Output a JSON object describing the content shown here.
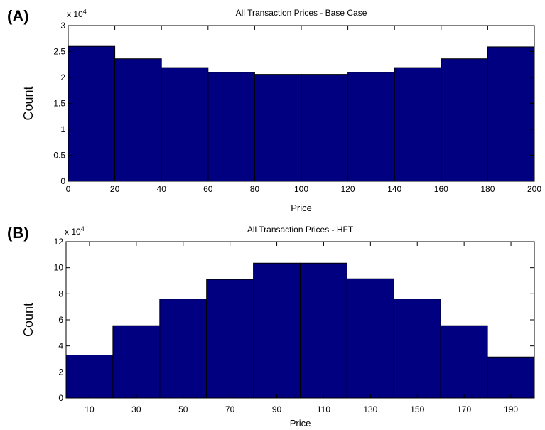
{
  "chart_data": [
    {
      "type": "bar",
      "panel_label": "(A)",
      "title": "All Transaction Prices - Base Case",
      "xlabel": "Price",
      "ylabel": "Count",
      "y_multiplier": {
        "base": "x 10",
        "exponent": "4"
      },
      "xlim": [
        0,
        200
      ],
      "ylim": [
        0,
        3
      ],
      "x_ticks": [
        0,
        20,
        40,
        60,
        80,
        100,
        120,
        140,
        160,
        180,
        200
      ],
      "y_ticks": [
        0,
        0.5,
        1,
        1.5,
        2,
        2.5,
        3
      ],
      "bin_edges": [
        0,
        20,
        40,
        60,
        80,
        100,
        120,
        140,
        160,
        180,
        200
      ],
      "values": [
        2.6,
        2.36,
        2.19,
        2.1,
        2.06,
        2.06,
        2.1,
        2.19,
        2.36,
        2.59
      ],
      "bar_color": "#000080",
      "grid": false
    },
    {
      "type": "bar",
      "panel_label": "(B)",
      "title": "All Transaction Prices - HFT",
      "xlabel": "Price",
      "ylabel": "Count",
      "y_multiplier": {
        "base": "x 10",
        "exponent": "4"
      },
      "xlim": [
        0,
        200
      ],
      "ylim": [
        0,
        12
      ],
      "x_ticks": [
        10,
        30,
        50,
        70,
        90,
        110,
        130,
        150,
        170,
        190
      ],
      "y_ticks": [
        0,
        2,
        4,
        6,
        8,
        10,
        12
      ],
      "bin_edges": [
        0,
        20,
        40,
        60,
        80,
        100,
        120,
        140,
        160,
        180,
        200
      ],
      "values": [
        3.3,
        5.55,
        7.6,
        9.1,
        10.35,
        10.35,
        9.15,
        7.6,
        5.55,
        3.15
      ],
      "bar_color": "#000080",
      "grid": false
    }
  ]
}
